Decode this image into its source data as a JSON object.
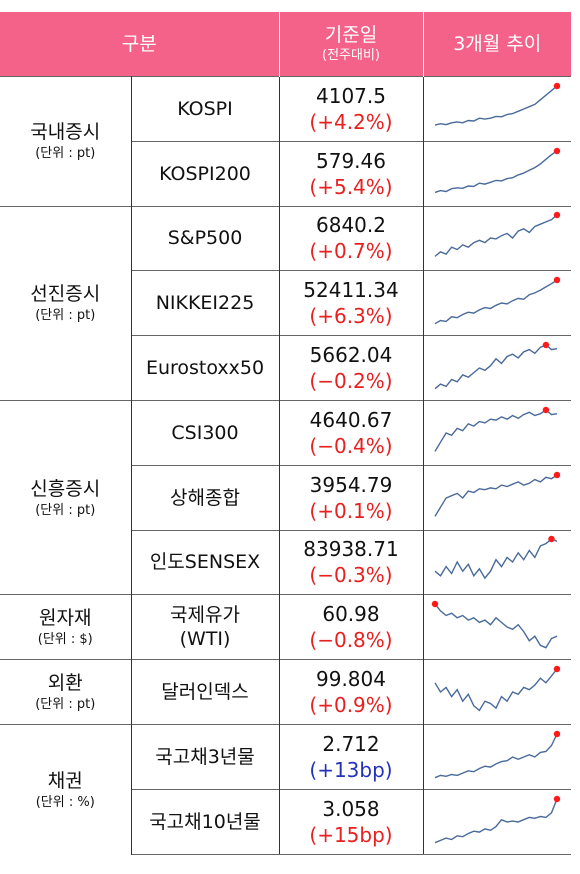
{
  "header": {
    "category": "구분",
    "reference": "기준일",
    "reference_sub": "(전주대비)",
    "trend": "3개월 추이"
  },
  "colors": {
    "header_bg": "#f4628a",
    "up": "#e8201f",
    "down_bp": "#2332b8",
    "line": "#4a6a9a",
    "marker": "#ff1a1a"
  },
  "groups": [
    {
      "title": "국내증시",
      "unit": "(단위 : pt)",
      "items": [
        {
          "name": "KOSPI",
          "value": "4107.5",
          "change": "(+4.2%)",
          "change_color": "red",
          "trend": [
            0.15,
            0.18,
            0.16,
            0.2,
            0.22,
            0.2,
            0.25,
            0.24,
            0.3,
            0.28,
            0.3,
            0.34,
            0.33,
            0.38,
            0.4,
            0.45,
            0.5,
            0.55,
            0.6,
            0.7,
            0.8,
            0.9,
            1.0
          ]
        },
        {
          "name": "KOSPI200",
          "value": "579.46",
          "change": "(+5.4%)",
          "change_color": "red",
          "trend": [
            0.1,
            0.14,
            0.12,
            0.18,
            0.2,
            0.19,
            0.24,
            0.23,
            0.3,
            0.28,
            0.32,
            0.36,
            0.35,
            0.4,
            0.42,
            0.48,
            0.52,
            0.58,
            0.64,
            0.72,
            0.82,
            0.92,
            1.0
          ]
        }
      ]
    },
    {
      "title": "선진증시",
      "unit": "(단위 : pt)",
      "items": [
        {
          "name": "S&P500",
          "value": "6840.2",
          "change": "(+0.7%)",
          "change_color": "red",
          "trend": [
            0.1,
            0.2,
            0.15,
            0.3,
            0.25,
            0.35,
            0.3,
            0.4,
            0.45,
            0.4,
            0.5,
            0.48,
            0.55,
            0.6,
            0.5,
            0.65,
            0.7,
            0.62,
            0.75,
            0.8,
            0.85,
            0.9,
            1.0
          ]
        },
        {
          "name": "NIKKEI225",
          "value": "52411.34",
          "change": "(+6.3%)",
          "change_color": "red",
          "trend": [
            0.05,
            0.12,
            0.1,
            0.2,
            0.18,
            0.25,
            0.3,
            0.28,
            0.35,
            0.4,
            0.38,
            0.45,
            0.5,
            0.48,
            0.55,
            0.6,
            0.58,
            0.68,
            0.72,
            0.78,
            0.85,
            0.92,
            1.0
          ]
        }
      ]
    },
    {
      "title": "",
      "unit": "",
      "items": [
        {
          "name": "Eurostoxx50",
          "value": "5662.04",
          "change": "(−0.2%)",
          "change_color": "red",
          "trend": [
            0.05,
            0.15,
            0.1,
            0.25,
            0.2,
            0.35,
            0.3,
            0.4,
            0.5,
            0.45,
            0.55,
            0.7,
            0.6,
            0.75,
            0.8,
            0.72,
            0.85,
            0.9,
            0.82,
            0.95,
            1.0,
            0.9,
            0.92
          ]
        }
      ]
    },
    {
      "title": "신흥증시",
      "unit": "(단위 : pt)",
      "items": [
        {
          "name": "CSI300",
          "value": "4640.67",
          "change": "(−0.4%)",
          "change_color": "red",
          "trend": [
            0.1,
            0.3,
            0.5,
            0.45,
            0.6,
            0.55,
            0.7,
            0.65,
            0.75,
            0.72,
            0.8,
            0.78,
            0.85,
            0.8,
            0.88,
            0.82,
            0.9,
            0.95,
            0.88,
            0.92,
            1.0,
            0.9,
            0.92
          ]
        },
        {
          "name": "상해종합",
          "value": "3954.79",
          "change": "(+0.1%)",
          "change_color": "red",
          "trend": [
            0.1,
            0.3,
            0.5,
            0.55,
            0.6,
            0.5,
            0.65,
            0.62,
            0.7,
            0.68,
            0.72,
            0.7,
            0.78,
            0.75,
            0.8,
            0.85,
            0.78,
            0.82,
            0.9,
            0.85,
            0.95,
            0.92,
            1.0
          ]
        },
        {
          "name": "인도SENSEX",
          "value": "83938.71",
          "change": "(−0.3%)",
          "change_color": "red",
          "trend": [
            0.3,
            0.2,
            0.4,
            0.25,
            0.5,
            0.3,
            0.45,
            0.2,
            0.35,
            0.15,
            0.3,
            0.55,
            0.4,
            0.6,
            0.5,
            0.7,
            0.55,
            0.75,
            0.6,
            0.85,
            0.9,
            1.0,
            0.95
          ]
        }
      ]
    },
    {
      "title": "원자재",
      "unit": "(단위 : $)",
      "items": [
        {
          "name": "국제유가\n(WTI)",
          "value": "60.98",
          "change": "(−0.8%)",
          "change_color": "red",
          "trend": [
            1.0,
            0.85,
            0.75,
            0.8,
            0.7,
            0.75,
            0.65,
            0.7,
            0.6,
            0.65,
            0.55,
            0.7,
            0.6,
            0.5,
            0.45,
            0.55,
            0.4,
            0.2,
            0.3,
            0.1,
            0.05,
            0.25,
            0.3
          ]
        }
      ]
    },
    {
      "title": "외환",
      "unit": "(단위 : pt)",
      "items": [
        {
          "name": "달러인덱스",
          "value": "99.804",
          "change": "(+0.9%)",
          "change_color": "red",
          "trend": [
            0.7,
            0.5,
            0.6,
            0.4,
            0.55,
            0.3,
            0.45,
            0.2,
            0.1,
            0.3,
            0.25,
            0.15,
            0.4,
            0.3,
            0.5,
            0.45,
            0.6,
            0.55,
            0.65,
            0.8,
            0.7,
            0.85,
            1.0
          ]
        }
      ]
    },
    {
      "title": "채권",
      "unit": "(단위 : %)",
      "items": [
        {
          "name": "국고채3년물",
          "value": "2.712",
          "change": "(+13bp)",
          "change_color": "blue",
          "trend": [
            0.05,
            0.1,
            0.08,
            0.12,
            0.1,
            0.15,
            0.2,
            0.18,
            0.25,
            0.3,
            0.28,
            0.35,
            0.4,
            0.42,
            0.5,
            0.45,
            0.5,
            0.55,
            0.5,
            0.6,
            0.62,
            0.75,
            1.0
          ]
        },
        {
          "name": "국고채10년물",
          "value": "3.058",
          "change": "(+15bp)",
          "change_color": "red",
          "trend": [
            0.05,
            0.1,
            0.15,
            0.12,
            0.2,
            0.18,
            0.25,
            0.3,
            0.28,
            0.35,
            0.32,
            0.4,
            0.55,
            0.5,
            0.52,
            0.5,
            0.55,
            0.6,
            0.58,
            0.62,
            0.6,
            0.7,
            1.0
          ]
        }
      ]
    }
  ]
}
